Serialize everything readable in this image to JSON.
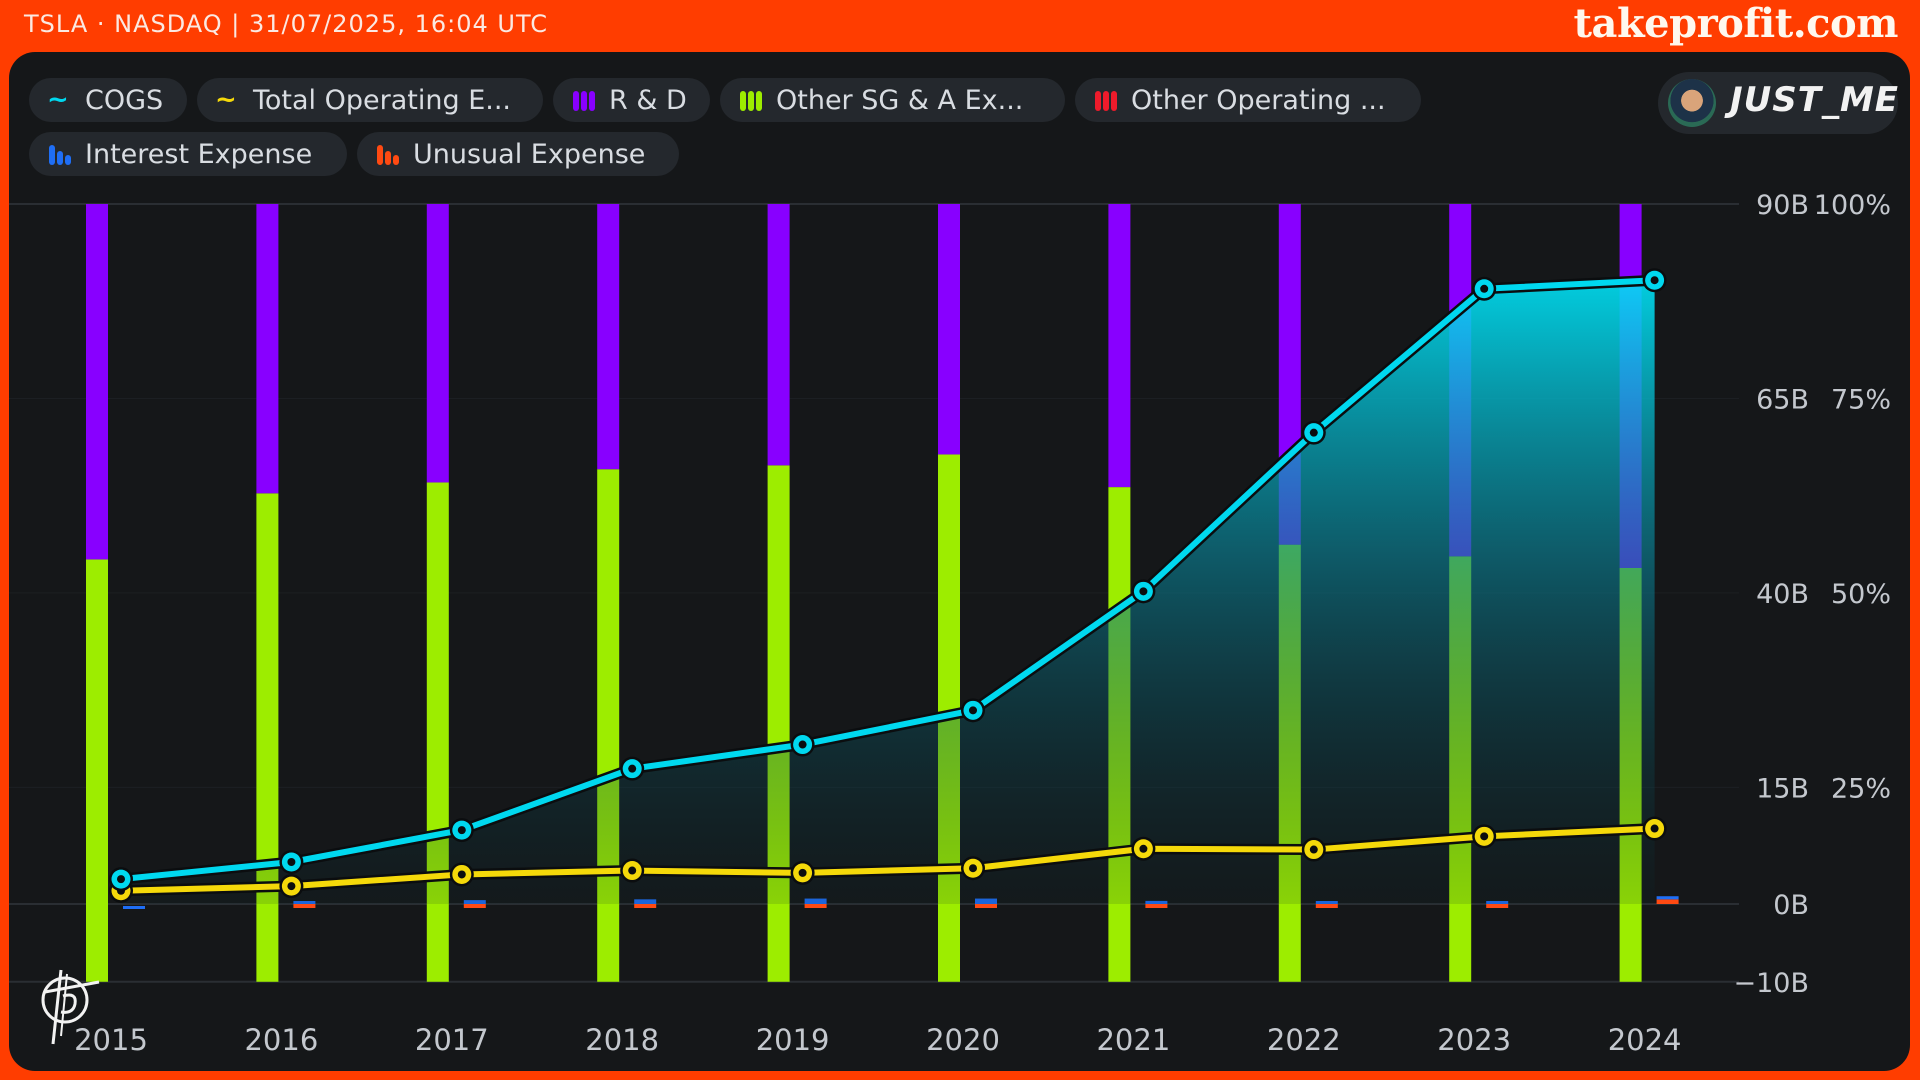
{
  "header": {
    "ticker_info": "TSLA · NASDAQ | 31/07/2025, 16:04 UTC",
    "brand": "takeprofit.com"
  },
  "user": {
    "name": "JUST_ME",
    "avatar_icon": "user-avatar"
  },
  "legend": [
    {
      "label": "COGS",
      "icon": "line-icon",
      "color": "#00d8ef"
    },
    {
      "label": "Total Operating E...",
      "icon": "line-icon",
      "color": "#f5d90a"
    },
    {
      "label": "R & D",
      "icon": "bar-icon",
      "color": "#8800ff"
    },
    {
      "label": "Other SG & A Ex...",
      "icon": "bar-icon",
      "color": "#9ded00"
    },
    {
      "label": "Other Operating ...",
      "icon": "bar-icon",
      "color": "#ee1b2b"
    },
    {
      "label": "Interest Expense",
      "icon": "bar-icon",
      "color": "#1f6ef5"
    },
    {
      "label": "Unusual Expense",
      "icon": "bar-icon",
      "color": "#ff4a12"
    }
  ],
  "chart_data": {
    "type": "bar",
    "title": "",
    "xlabel": "",
    "categories": [
      "2015",
      "2016",
      "2017",
      "2018",
      "2019",
      "2020",
      "2021",
      "2022",
      "2023",
      "2024"
    ],
    "y_left": {
      "ticks": [
        "90B",
        "65B",
        "40B",
        "15B",
        "0B",
        "−10B"
      ],
      "tick_values": [
        90,
        65,
        40,
        15,
        0,
        -10
      ],
      "range": [
        -10,
        90
      ],
      "unit": "B"
    },
    "y_right": {
      "ticks": [
        "100%",
        "75%",
        "50%",
        "25%"
      ],
      "tick_values": [
        100,
        75,
        50,
        25
      ],
      "range": [
        0,
        100
      ],
      "unit": "%"
    },
    "series": [
      {
        "name": "COGS",
        "type": "line",
        "axis": "left",
        "color": "#00d8ef",
        "values": [
          3.2,
          5.4,
          9.5,
          17.4,
          20.5,
          24.9,
          40.2,
          60.6,
          79.1,
          80.2
        ]
      },
      {
        "name": "Total Operating Expense",
        "type": "line",
        "axis": "left",
        "color": "#f5d90a",
        "values": [
          1.7,
          2.3,
          3.8,
          4.3,
          4.0,
          4.6,
          7.1,
          7.0,
          8.7,
          9.7
        ]
      },
      {
        "name": "Other SG & A Expense",
        "type": "stacked_percent_bar",
        "axis": "right",
        "color": "#9ded00",
        "values": [
          54.3,
          62.8,
          64.2,
          65.9,
          66.4,
          67.8,
          63.6,
          56.2,
          54.7,
          53.2
        ]
      },
      {
        "name": "R & D",
        "type": "stacked_percent_bar",
        "axis": "right",
        "color": "#8800ff",
        "values": [
          45.7,
          37.2,
          35.8,
          34.1,
          33.6,
          32.2,
          36.4,
          43.8,
          45.3,
          46.8
        ]
      },
      {
        "name": "Other Operating Expense",
        "type": "bar",
        "axis": "left",
        "color": "#ee1b2b",
        "values": [
          0,
          0,
          0,
          0,
          0,
          0,
          0,
          0,
          0,
          0
        ]
      },
      {
        "name": "Interest Expense",
        "type": "bar",
        "axis": "left",
        "color": "#1f6ef5",
        "values": [
          -0.3,
          0.1,
          0.5,
          0.6,
          0.7,
          0.7,
          0.4,
          0.2,
          0.1,
          0.4
        ]
      },
      {
        "name": "Unusual Expense",
        "type": "bar",
        "axis": "left",
        "color": "#ff4a12",
        "values": [
          0,
          -0.5,
          -0.4,
          -0.5,
          -0.4,
          -0.5,
          -0.5,
          -0.3,
          -0.4,
          0.6
        ]
      }
    ],
    "grid": true,
    "legend_position": "top-left"
  }
}
